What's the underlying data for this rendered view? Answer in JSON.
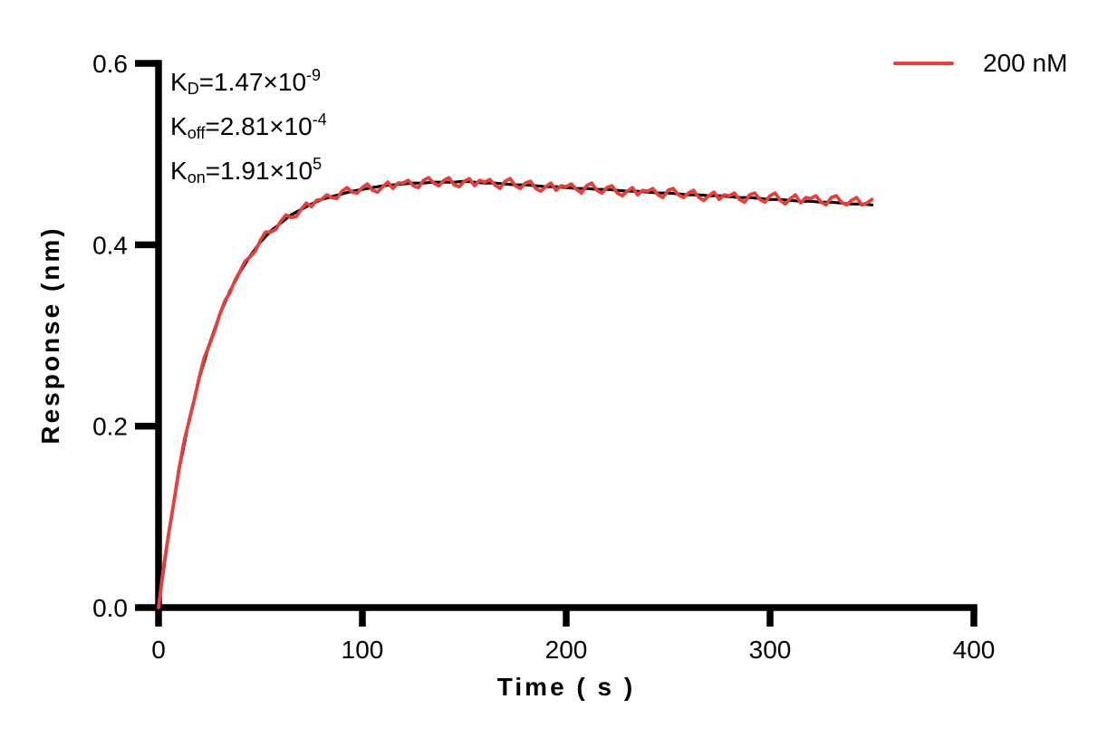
{
  "page": {
    "background": "#ffffff"
  },
  "annotation": {
    "lines": [
      {
        "base": "K",
        "sub": "D",
        "value": "=1.47×10",
        "exp": "-9"
      },
      {
        "base": "K",
        "sub": "off",
        "value": "=2.81×10",
        "exp": "-4"
      },
      {
        "base": "K",
        "sub": "on",
        "value": "=1.91×10",
        "exp": "5"
      }
    ]
  },
  "legend": {
    "label": "200 nM",
    "color": "#E6403D"
  },
  "chart_data": {
    "type": "line",
    "title": "",
    "xlabel": "Time ( s )",
    "ylabel": "Response (nm)",
    "xlim": [
      0,
      400
    ],
    "ylim": [
      0,
      0.6
    ],
    "x_ticks": {
      "values": [
        0,
        100,
        200,
        300,
        400
      ],
      "labels": [
        "0",
        "100",
        "200",
        "300",
        "400"
      ]
    },
    "y_ticks": {
      "values": [
        0,
        0.2,
        0.4,
        0.6
      ],
      "labels": [
        "0.0",
        "0.2",
        "0.4",
        "0.6"
      ]
    },
    "grid": false,
    "legend_position": "top-right",
    "axis_color": "#000000",
    "kinetics": {
      "KD": "1.47×10^-9",
      "Koff": "2.81×10^-4",
      "Kon": "1.91×10^5",
      "concentration": "200 nM"
    },
    "series": [
      {
        "name": "fit",
        "color": "#000000",
        "stroke_width": 3.2,
        "x_start": 0,
        "x_step": 5,
        "values": [
          0.0,
          0.083,
          0.151,
          0.207,
          0.253,
          0.291,
          0.323,
          0.349,
          0.37,
          0.388,
          0.403,
          0.415,
          0.424,
          0.433,
          0.439,
          0.445,
          0.45,
          0.453,
          0.456,
          0.459,
          0.461,
          0.463,
          0.465,
          0.466,
          0.467,
          0.468,
          0.468,
          0.469,
          0.469,
          0.469,
          0.47,
          0.469,
          0.468,
          0.468,
          0.467,
          0.466,
          0.466,
          0.465,
          0.464,
          0.464,
          0.463,
          0.462,
          0.462,
          0.461,
          0.461,
          0.46,
          0.459,
          0.459,
          0.458,
          0.457,
          0.457,
          0.456,
          0.455,
          0.455,
          0.454,
          0.454,
          0.453,
          0.452,
          0.452,
          0.451,
          0.45,
          0.45,
          0.449,
          0.448,
          0.448,
          0.447,
          0.447,
          0.446,
          0.445,
          0.445,
          0.444
        ]
      },
      {
        "name": "200 nM",
        "color": "#E6403D",
        "stroke_width": 3.8,
        "x_start": 0,
        "x_step": 2.5,
        "values": [
          0.0,
          0.045,
          0.082,
          0.116,
          0.152,
          0.183,
          0.206,
          0.229,
          0.254,
          0.276,
          0.29,
          0.305,
          0.323,
          0.338,
          0.347,
          0.361,
          0.371,
          0.382,
          0.387,
          0.393,
          0.405,
          0.414,
          0.414,
          0.417,
          0.426,
          0.433,
          0.43,
          0.431,
          0.439,
          0.446,
          0.442,
          0.449,
          0.45,
          0.455,
          0.452,
          0.451,
          0.459,
          0.463,
          0.458,
          0.457,
          0.463,
          0.467,
          0.46,
          0.458,
          0.464,
          0.469,
          0.462,
          0.468,
          0.468,
          0.471,
          0.465,
          0.463,
          0.471,
          0.474,
          0.468,
          0.465,
          0.471,
          0.474,
          0.466,
          0.464,
          0.47,
          0.473,
          0.465,
          0.471,
          0.469,
          0.472,
          0.466,
          0.462,
          0.47,
          0.473,
          0.465,
          0.462,
          0.468,
          0.47,
          0.462,
          0.459,
          0.464,
          0.468,
          0.46,
          0.465,
          0.464,
          0.467,
          0.461,
          0.457,
          0.465,
          0.468,
          0.46,
          0.457,
          0.463,
          0.465,
          0.457,
          0.454,
          0.459,
          0.463,
          0.455,
          0.46,
          0.459,
          0.462,
          0.455,
          0.452,
          0.46,
          0.462,
          0.455,
          0.452,
          0.457,
          0.46,
          0.452,
          0.449,
          0.454,
          0.458,
          0.45,
          0.455,
          0.454,
          0.457,
          0.45,
          0.447,
          0.455,
          0.457,
          0.45,
          0.447,
          0.454,
          0.457,
          0.449,
          0.445,
          0.451,
          0.455,
          0.446,
          0.452,
          0.451,
          0.454,
          0.447,
          0.444,
          0.452,
          0.454,
          0.447,
          0.444,
          0.449,
          0.452,
          0.444,
          0.446,
          0.45
        ]
      }
    ]
  }
}
